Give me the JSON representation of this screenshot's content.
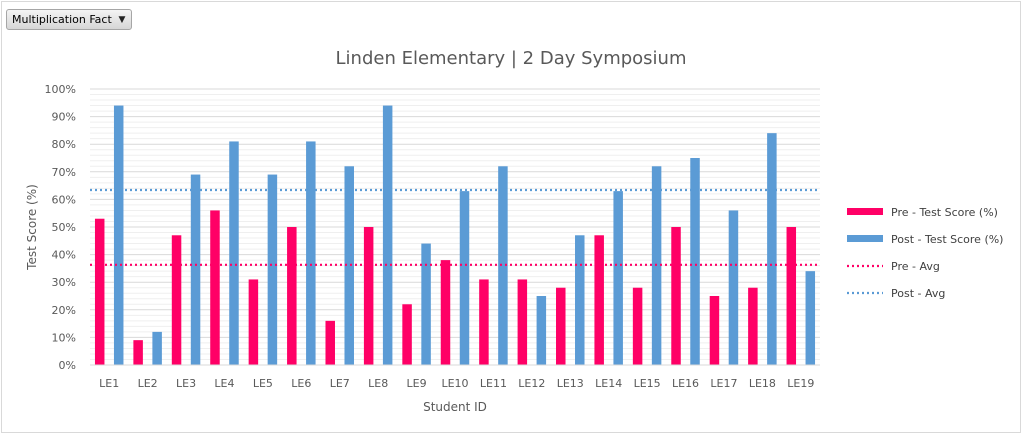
{
  "slicer": {
    "selected": "Multiplication Fact",
    "icon": "dropdown-arrow-icon"
  },
  "chart_data": {
    "type": "bar",
    "title": "Linden Elementary | 2 Day Symposium",
    "xlabel": "Student ID",
    "ylabel": "Test Score (%)",
    "ylim": [
      0,
      100
    ],
    "y_ticks": [
      "0%",
      "10%",
      "20%",
      "30%",
      "40%",
      "50%",
      "60%",
      "70%",
      "80%",
      "90%",
      "100%"
    ],
    "grid": true,
    "legend_position": "right",
    "categories": [
      "LE1",
      "LE2",
      "LE3",
      "LE4",
      "LE5",
      "LE6",
      "LE7",
      "LE8",
      "LE9",
      "LE10",
      "LE11",
      "LE12",
      "LE13",
      "LE14",
      "LE15",
      "LE16",
      "LE17",
      "LE18",
      "LE19"
    ],
    "series": [
      {
        "name": "Pre - Test Score (%)",
        "color": "#ff0066",
        "values": [
          53,
          9,
          47,
          56,
          31,
          50,
          16,
          50,
          22,
          38,
          31,
          31,
          28,
          47,
          28,
          50,
          25,
          28,
          50
        ]
      },
      {
        "name": "Post - Test Score (%)",
        "color": "#5b9bd5",
        "values": [
          94,
          12,
          69,
          81,
          69,
          81,
          72,
          94,
          44,
          63,
          72,
          25,
          47,
          63,
          72,
          75,
          56,
          84,
          34
        ]
      }
    ],
    "averages": [
      {
        "name": "Pre - Avg",
        "color": "#ff0066",
        "value": 36.3
      },
      {
        "name": "Post - Avg",
        "color": "#5b9bd5",
        "value": 63.4
      }
    ]
  }
}
